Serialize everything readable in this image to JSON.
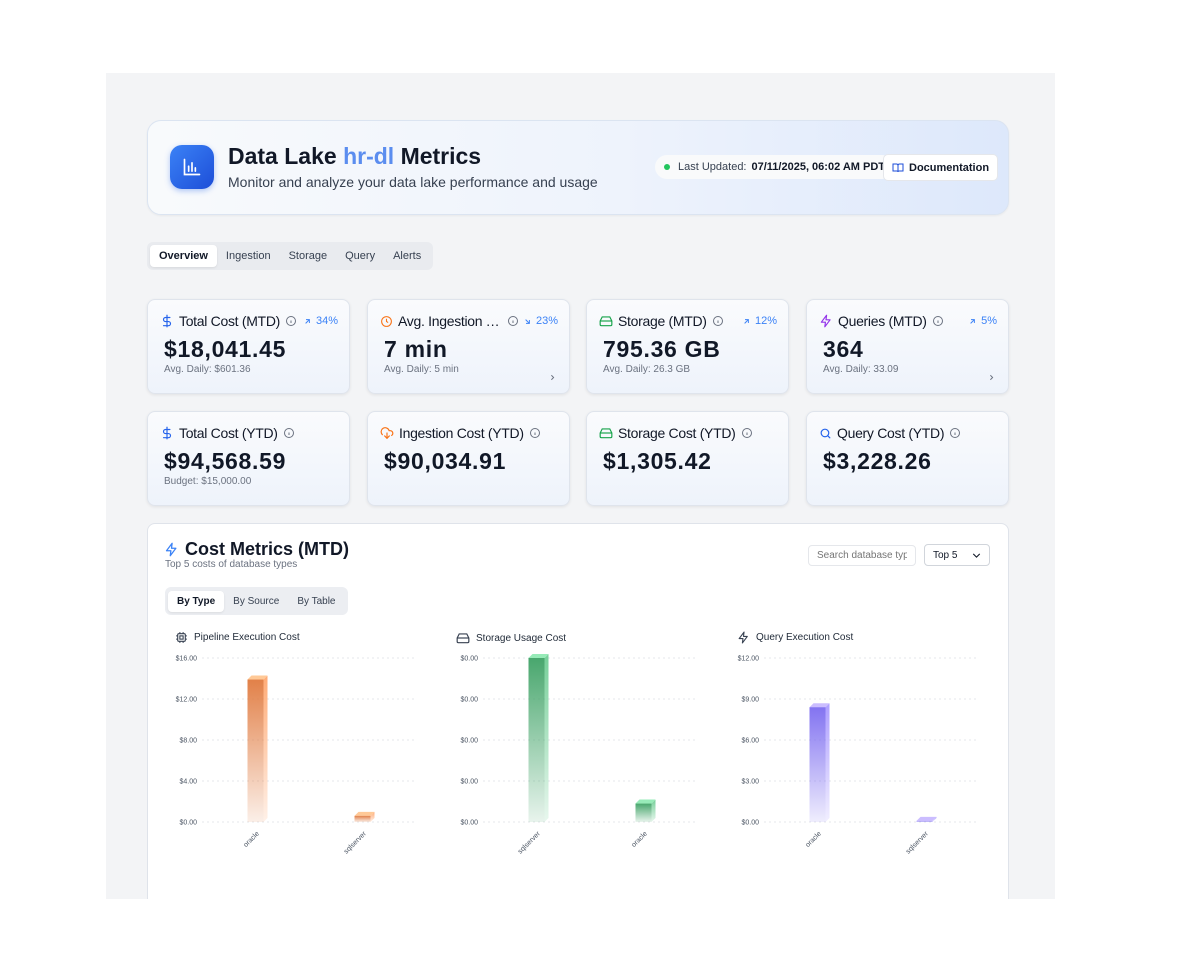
{
  "header": {
    "title_prefix": "Data Lake",
    "title_accent": "hr-dl",
    "title_suffix": "Metrics",
    "subtitle": "Monitor and analyze your data lake performance and usage",
    "last_updated_label": "Last Updated:",
    "last_updated_value": "07/11/2025, 06:02 AM PDT",
    "documentation_label": "Documentation",
    "logo_icon": "bar-chart-icon"
  },
  "tabs": [
    "Overview",
    "Ingestion",
    "Storage",
    "Query",
    "Alerts"
  ],
  "active_tab": "Overview",
  "metrics": [
    {
      "label": "Total Cost (MTD)",
      "icon": "dollar-icon",
      "icon_color": "#2563eb",
      "trend": "34%",
      "trend_dir": "up",
      "value": "$18,041.45",
      "sub": "Avg. Daily: $601.36",
      "chevron": false
    },
    {
      "label": "Avg. Ingestion Time",
      "icon": "clock-icon",
      "icon_color": "#f97316",
      "trend": "23%",
      "trend_dir": "down",
      "value": "7 min",
      "sub": "Avg. Daily: 5 min",
      "chevron": true
    },
    {
      "label": "Storage (MTD)",
      "icon": "hard-drive-icon",
      "icon_color": "#16a34a",
      "trend": "12%",
      "trend_dir": "up",
      "value": "795.36 GB",
      "sub": "Avg. Daily: 26.3 GB",
      "chevron": false
    },
    {
      "label": "Queries (MTD)",
      "icon": "zap-icon",
      "icon_color": "#9333ea",
      "trend": "5%",
      "trend_dir": "up",
      "value": "364",
      "sub": "Avg. Daily: 33.09",
      "chevron": true
    },
    {
      "label": "Total Cost (YTD)",
      "icon": "dollar-icon",
      "icon_color": "#2563eb",
      "value": "$94,568.59",
      "sub": "Budget: $15,000.00"
    },
    {
      "label": "Ingestion Cost (YTD)",
      "icon": "cloud-download-icon",
      "icon_color": "#f97316",
      "value": "$90,034.91",
      "sub": ""
    },
    {
      "label": "Storage Cost (YTD)",
      "icon": "hard-drive-icon",
      "icon_color": "#16a34a",
      "value": "$1,305.42",
      "sub": ""
    },
    {
      "label": "Query Cost (YTD)",
      "icon": "search-icon",
      "icon_color": "#2563eb",
      "value": "$3,228.26",
      "sub": ""
    }
  ],
  "cost_panel": {
    "title": "Cost Metrics (MTD)",
    "subtitle": "Top 5 costs of database types",
    "search_placeholder": "Search database typ",
    "select_value": "Top 5",
    "tabs": [
      "By Type",
      "By Source",
      "By Table"
    ],
    "active_tab": "By Type"
  },
  "chart_data": [
    {
      "type": "bar",
      "title": "Pipeline Execution Cost",
      "icon": "cpu-icon",
      "color": "#e07a3f",
      "categories": [
        "oracle",
        "sqlserver"
      ],
      "values": [
        13.9,
        0.6
      ],
      "yticks": [
        "$0.00",
        "$4.00",
        "$8.00",
        "$12.00",
        "$16.00"
      ],
      "ylim": [
        0,
        16
      ]
    },
    {
      "type": "bar",
      "title": "Storage Usage Cost",
      "icon": "hard-drive-icon",
      "color": "#3fa266",
      "categories": [
        "sqlserver",
        "oracle"
      ],
      "values": [
        0.004,
        0.00045
      ],
      "yticks": [
        "$0.00",
        "$0.00",
        "$0.00",
        "$0.00",
        "$0.00"
      ],
      "ylim": [
        0,
        0.004
      ]
    },
    {
      "type": "bar",
      "title": "Query Execution Cost",
      "icon": "zap-icon",
      "color": "#7c6cf0",
      "categories": [
        "oracle",
        "sqlserver"
      ],
      "values": [
        8.4,
        0.08
      ],
      "yticks": [
        "$0.00",
        "$3.00",
        "$6.00",
        "$9.00",
        "$12.00"
      ],
      "ylim": [
        0,
        12
      ]
    }
  ]
}
